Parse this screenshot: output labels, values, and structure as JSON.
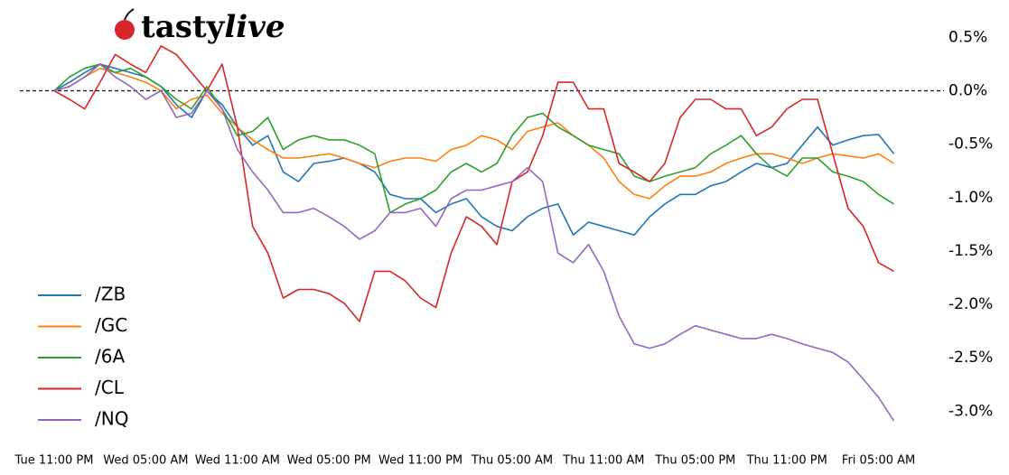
{
  "brand": [
    "tasty",
    "live"
  ],
  "chart_data": {
    "type": "line",
    "categories": [
      "Tue 11:00 PM",
      null,
      null,
      null,
      null,
      null,
      "Wed 05:00 AM",
      null,
      null,
      null,
      null,
      null,
      "Wed 11:00 AM",
      null,
      null,
      null,
      null,
      null,
      "Wed 05:00 PM",
      null,
      null,
      null,
      null,
      null,
      "Wed 11:00 PM",
      null,
      null,
      null,
      null,
      null,
      "Thu 05:00 AM",
      null,
      null,
      null,
      null,
      null,
      "Thu 11:00 AM",
      null,
      null,
      null,
      null,
      null,
      "Thu 05:00 PM",
      null,
      null,
      null,
      null,
      null,
      "Thu 11:00 PM",
      null,
      null,
      null,
      null,
      null,
      "Fri 05:00 AM",
      null
    ],
    "series": [
      {
        "name": "/ZB",
        "color": "#1f77b4",
        "values": [
          0,
          0.08,
          0.17,
          0.25,
          0.21,
          0.17,
          0.13,
          0.04,
          -0.13,
          -0.25,
          0,
          -0.13,
          -0.34,
          -0.51,
          -0.42,
          -0.76,
          -0.85,
          -0.68,
          -0.66,
          -0.63,
          -0.68,
          -0.76,
          -0.97,
          -1.01,
          -1.01,
          -1.14,
          -1.06,
          -1.01,
          -1.18,
          -1.27,
          -1.31,
          -1.18,
          -1.1,
          -1.06,
          -1.35,
          -1.23,
          -1.27,
          -1.31,
          -1.35,
          -1.18,
          -1.06,
          -0.97,
          -0.97,
          -0.89,
          -0.85,
          -0.76,
          -0.68,
          -0.72,
          -0.68,
          -0.51,
          -0.34,
          -0.51,
          -0.46,
          -0.42,
          -0.41,
          -0.59
        ]
      },
      {
        "name": "/GC",
        "color": "#ff7f0e",
        "values": [
          0,
          0.04,
          0.13,
          0.21,
          0.17,
          0.13,
          0.08,
          0,
          -0.17,
          -0.08,
          -0.04,
          -0.21,
          -0.34,
          -0.46,
          -0.55,
          -0.63,
          -0.63,
          -0.61,
          -0.59,
          -0.63,
          -0.68,
          -0.72,
          -0.66,
          -0.63,
          -0.63,
          -0.66,
          -0.55,
          -0.51,
          -0.42,
          -0.46,
          -0.55,
          -0.38,
          -0.34,
          -0.3,
          -0.42,
          -0.51,
          -0.63,
          -0.85,
          -0.97,
          -1.01,
          -0.89,
          -0.8,
          -0.8,
          -0.76,
          -0.68,
          -0.63,
          -0.59,
          -0.59,
          -0.63,
          -0.68,
          -0.63,
          -0.59,
          -0.61,
          -0.63,
          -0.59,
          -0.68
        ]
      },
      {
        "name": "/6A",
        "color": "#2ca02c",
        "values": [
          0,
          0.13,
          0.21,
          0.25,
          0.17,
          0.21,
          0.13,
          0.04,
          -0.08,
          -0.17,
          0.04,
          -0.17,
          -0.42,
          -0.38,
          -0.25,
          -0.55,
          -0.46,
          -0.42,
          -0.46,
          -0.46,
          -0.51,
          -0.59,
          -1.14,
          -1.06,
          -1.01,
          -0.93,
          -0.76,
          -0.68,
          -0.76,
          -0.68,
          -0.42,
          -0.25,
          -0.21,
          -0.34,
          -0.42,
          -0.51,
          -0.55,
          -0.59,
          -0.8,
          -0.85,
          -0.8,
          -0.76,
          -0.72,
          -0.59,
          -0.51,
          -0.42,
          -0.59,
          -0.72,
          -0.8,
          -0.63,
          -0.63,
          -0.76,
          -0.8,
          -0.85,
          -0.97,
          -1.06
        ]
      },
      {
        "name": "/CL",
        "color": "#d62728",
        "values": [
          0,
          -0.08,
          -0.17,
          0.08,
          0.34,
          0.25,
          0.17,
          0.42,
          0.34,
          0.17,
          0,
          0.25,
          -0.34,
          -1.27,
          -1.52,
          -1.94,
          -1.86,
          -1.86,
          -1.9,
          -1.99,
          -2.16,
          -1.69,
          -1.69,
          -1.78,
          -1.94,
          -2.03,
          -1.52,
          -1.18,
          -1.27,
          -1.44,
          -0.85,
          -0.76,
          -0.42,
          0.08,
          0.08,
          -0.17,
          -0.17,
          -0.68,
          -0.76,
          -0.85,
          -0.68,
          -0.25,
          -0.08,
          -0.08,
          -0.17,
          -0.17,
          -0.42,
          -0.34,
          -0.17,
          -0.08,
          -0.08,
          -0.59,
          -1.1,
          -1.27,
          -1.61,
          -1.69
        ]
      },
      {
        "name": "/NQ",
        "color": "#9467bd",
        "values": [
          0,
          0.04,
          0.13,
          0.25,
          0.13,
          0.04,
          -0.08,
          0,
          -0.25,
          -0.21,
          0,
          -0.17,
          -0.55,
          -0.76,
          -0.93,
          -1.14,
          -1.14,
          -1.1,
          -1.18,
          -1.27,
          -1.39,
          -1.31,
          -1.14,
          -1.14,
          -1.1,
          -1.27,
          -1.01,
          -0.93,
          -0.93,
          -0.89,
          -0.85,
          -0.72,
          -0.85,
          -1.52,
          -1.61,
          -1.44,
          -1.69,
          -2.11,
          -2.37,
          -2.41,
          -2.37,
          -2.28,
          -2.2,
          -2.24,
          -2.28,
          -2.32,
          -2.32,
          -2.28,
          -2.32,
          -2.37,
          -2.41,
          -2.45,
          -2.54,
          -2.7,
          -2.87,
          -3.09
        ]
      }
    ],
    "ylim": [
      -3.2,
      0.85
    ],
    "yticks": [
      {
        "value": 0.5,
        "label": "0.5%"
      },
      {
        "value": 0,
        "label": "0.0%"
      },
      {
        "value": -0.5,
        "label": "-0.5%"
      },
      {
        "value": -1,
        "label": "-1.0%"
      },
      {
        "value": -1.5,
        "label": "-1.5%"
      },
      {
        "value": -2,
        "label": "-2.0%"
      },
      {
        "value": -2.5,
        "label": "-2.5%"
      },
      {
        "value": -3,
        "label": "-3.0%"
      }
    ],
    "zero_line": true,
    "legend": "lower left"
  }
}
